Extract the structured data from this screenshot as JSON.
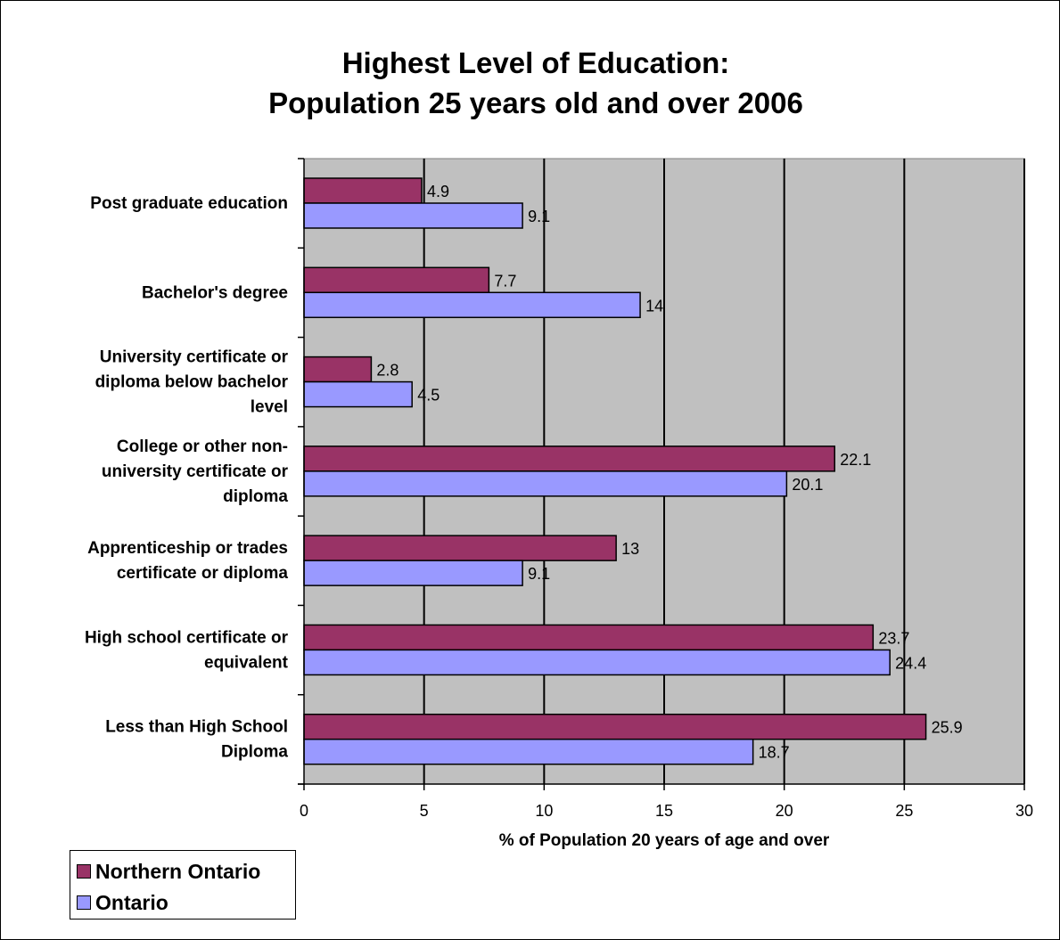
{
  "chart_data": {
    "type": "bar",
    "orientation": "horizontal",
    "title_lines": [
      "Highest Level of Education:",
      "Population 25 years old and over 2006"
    ],
    "xlabel": "% of Population 20 years of age and over",
    "ylabel": "",
    "xlim": [
      0,
      30
    ],
    "xticks": [
      0,
      5,
      10,
      15,
      20,
      25,
      30
    ],
    "grid": "vertical major gridlines",
    "plot_background": "#c0c0c0",
    "legend_position": "bottom-left",
    "categories": [
      {
        "lines": [
          "Post graduate education"
        ]
      },
      {
        "lines": [
          "Bachelor's degree"
        ]
      },
      {
        "lines": [
          "University certificate or",
          "diploma below bachelor",
          "level"
        ]
      },
      {
        "lines": [
          "College or other non-",
          "university certificate or",
          "diploma"
        ]
      },
      {
        "lines": [
          "Apprenticeship or trades",
          "certificate or diploma"
        ]
      },
      {
        "lines": [
          "High school certificate or",
          "equivalent"
        ]
      },
      {
        "lines": [
          "Less than High School",
          "Diploma"
        ]
      }
    ],
    "series": [
      {
        "name": "Northern Ontario",
        "color": "#993366",
        "values": [
          4.9,
          7.7,
          2.8,
          22.1,
          13,
          23.7,
          25.9
        ]
      },
      {
        "name": "Ontario",
        "color": "#9999ff",
        "values": [
          9.1,
          14,
          4.5,
          20.1,
          9.1,
          24.4,
          18.7
        ]
      }
    ]
  }
}
